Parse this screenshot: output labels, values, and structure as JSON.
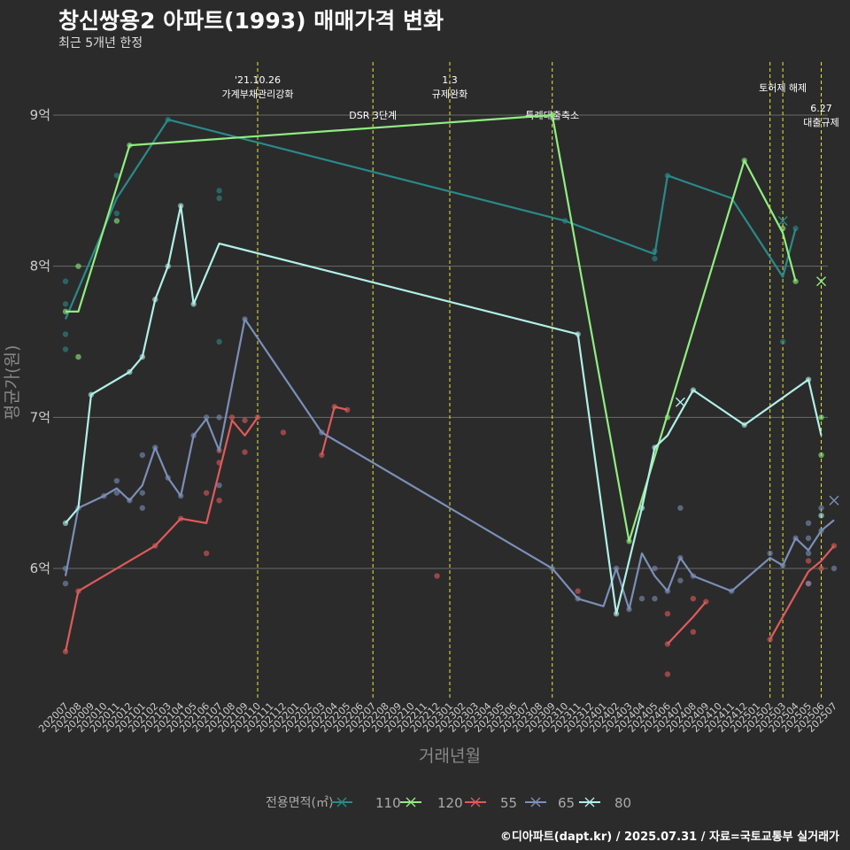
{
  "header": {
    "title": "창신쌍용2 아파트(1993) 매매가격 변화",
    "subtitle": "최근 5개년 한정",
    "caption": "©디아파트(dapt.kr) / 2025.07.31 / 자료=국토교통부 실거래가"
  },
  "chart_data": {
    "type": "line",
    "title": "창신쌍용2 아파트(1993) 매매가격 변화",
    "subtitle": "최근 5개년 한정",
    "xlabel": "거래년월",
    "ylabel": "평균가(원)",
    "ylim": [
      5.1,
      9.4
    ],
    "y_ticks": [
      {
        "value": 6,
        "label": "6억"
      },
      {
        "value": 7,
        "label": "7억"
      },
      {
        "value": 8,
        "label": "8억"
      },
      {
        "value": 9,
        "label": "9억"
      }
    ],
    "x_categories": [
      "202007",
      "202008",
      "202009",
      "202010",
      "202011",
      "202012",
      "202101",
      "202102",
      "202103",
      "202104",
      "202105",
      "202106",
      "202107",
      "202108",
      "202109",
      "202110",
      "202111",
      "202112",
      "202201",
      "202202",
      "202203",
      "202204",
      "202205",
      "202206",
      "202207",
      "202208",
      "202209",
      "202210",
      "202211",
      "202212",
      "202301",
      "202302",
      "202303",
      "202304",
      "202305",
      "202306",
      "202307",
      "202308",
      "202309",
      "202310",
      "202311",
      "202312",
      "202401",
      "202402",
      "202403",
      "202404",
      "202405",
      "202406",
      "202407",
      "202408",
      "202409",
      "202410",
      "202411",
      "202412",
      "202501",
      "202502",
      "202503",
      "202504",
      "202505",
      "202506",
      "202507"
    ],
    "grid": true,
    "legend": {
      "title": "전용면적(㎡)",
      "position": "bottom"
    },
    "annotations": [
      {
        "x": "202110",
        "lines": [
          "'21.10.26",
          "가계부채관리강화"
        ]
      },
      {
        "x": "202207",
        "lines": [
          "DSR 3단계"
        ]
      },
      {
        "x": "202301",
        "lines": [
          "1.3",
          "규제완화"
        ]
      },
      {
        "x": "202309",
        "lines": [
          "특례대출축소"
        ]
      },
      {
        "x": "202502",
        "lines": []
      },
      {
        "x": "202503",
        "lines": [
          "토허제 해제"
        ]
      },
      {
        "x": "202506",
        "lines": [
          "6.27",
          "대출규제"
        ]
      }
    ],
    "series": [
      {
        "name": "110",
        "color": "#2a8a8a",
        "line": [
          [
            "202007",
            7.65
          ],
          [
            "202011",
            8.45
          ],
          [
            "202103",
            8.97
          ],
          [
            "202310",
            8.3
          ],
          [
            "202405",
            8.08
          ],
          [
            "202406",
            8.6
          ],
          [
            "202411",
            8.45
          ],
          [
            "202503",
            7.93
          ],
          [
            "202504",
            8.25
          ]
        ],
        "points": [
          [
            "202007",
            7.9
          ],
          [
            "202007",
            7.75
          ],
          [
            "202007",
            7.55
          ],
          [
            "202007",
            7.45
          ],
          [
            "202011",
            8.6
          ],
          [
            "202011",
            8.35
          ],
          [
            "202103",
            8.97
          ],
          [
            "202107",
            8.5
          ],
          [
            "202107",
            8.45
          ],
          [
            "202107",
            7.5
          ],
          [
            "202310",
            8.3
          ],
          [
            "202405",
            8.1
          ],
          [
            "202405",
            8.05
          ],
          [
            "202406",
            8.6
          ],
          [
            "202503",
            7.5
          ],
          [
            "202504",
            8.25
          ]
        ],
        "crosses": [
          [
            "202503",
            8.3
          ]
        ]
      },
      {
        "name": "120",
        "color": "#90ee80",
        "line": [
          [
            "202007",
            7.7
          ],
          [
            "202008",
            7.7
          ],
          [
            "202012",
            8.8
          ],
          [
            "202309",
            9.0
          ],
          [
            "202403",
            6.18
          ],
          [
            "202412",
            8.7
          ],
          [
            "202503",
            8.22
          ],
          [
            "202504",
            7.9
          ]
        ],
        "points": [
          [
            "202007",
            7.7
          ],
          [
            "202008",
            8.0
          ],
          [
            "202008",
            7.4
          ],
          [
            "202011",
            8.3
          ],
          [
            "202012",
            8.8
          ],
          [
            "202309",
            9.0
          ],
          [
            "202403",
            6.18
          ],
          [
            "202406",
            7.0
          ],
          [
            "202412",
            8.7
          ],
          [
            "202503",
            8.25
          ],
          [
            "202504",
            7.9
          ],
          [
            "202506",
            7.0
          ],
          [
            "202506",
            6.75
          ]
        ],
        "crosses": [
          [
            "202506",
            7.9
          ]
        ]
      },
      {
        "name": "55",
        "color": "#e05a5a",
        "line": [
          [
            "202007",
            5.45
          ],
          [
            "202008",
            5.85
          ],
          [
            "202102",
            6.15
          ],
          [
            "202104",
            6.33
          ],
          [
            "202106",
            6.3
          ],
          [
            "202108",
            6.98
          ],
          [
            "202109",
            6.88
          ],
          [
            "202110",
            7.0
          ]
        ],
        "segments": [
          [
            [
              "202203",
              6.75
            ],
            [
              "202204",
              7.07
            ],
            [
              "202205",
              7.05
            ]
          ],
          [
            [
              "202406",
              5.5
            ],
            [
              "202408",
              5.68
            ],
            [
              "202409",
              5.78
            ]
          ],
          [
            [
              "202502",
              5.53
            ],
            [
              "202505",
              5.98
            ],
            [
              "202506",
              6.05
            ],
            [
              "202507",
              6.15
            ]
          ]
        ],
        "points": [
          [
            "202007",
            5.45
          ],
          [
            "202008",
            5.85
          ],
          [
            "202102",
            6.15
          ],
          [
            "202104",
            6.33
          ],
          [
            "202106",
            6.5
          ],
          [
            "202106",
            6.1
          ],
          [
            "202107",
            6.78
          ],
          [
            "202107",
            6.7
          ],
          [
            "202107",
            6.45
          ],
          [
            "202108",
            7.0
          ],
          [
            "202109",
            6.98
          ],
          [
            "202109",
            6.77
          ],
          [
            "202110",
            7.0
          ],
          [
            "202112",
            6.9
          ],
          [
            "202203",
            6.75
          ],
          [
            "202204",
            7.07
          ],
          [
            "202205",
            7.05
          ],
          [
            "202212",
            5.95
          ],
          [
            "202311",
            5.85
          ],
          [
            "202406",
            5.7
          ],
          [
            "202406",
            5.5
          ],
          [
            "202406",
            5.3
          ],
          [
            "202408",
            5.8
          ],
          [
            "202408",
            5.58
          ],
          [
            "202409",
            5.78
          ],
          [
            "202502",
            5.53
          ],
          [
            "202505",
            6.05
          ],
          [
            "202505",
            5.9
          ],
          [
            "202506",
            6.0
          ],
          [
            "202507",
            6.15
          ]
        ]
      },
      {
        "name": "65",
        "color": "#7b8fb8",
        "line": [
          [
            "202007",
            5.95
          ],
          [
            "202008",
            6.4
          ],
          [
            "202010",
            6.48
          ],
          [
            "202011",
            6.53
          ],
          [
            "202012",
            6.45
          ],
          [
            "202101",
            6.55
          ],
          [
            "202102",
            6.8
          ],
          [
            "202103",
            6.6
          ],
          [
            "202104",
            6.48
          ],
          [
            "202105",
            6.88
          ],
          [
            "202106",
            6.99
          ],
          [
            "202107",
            6.78
          ],
          [
            "202109",
            7.65
          ],
          [
            "202203",
            6.9
          ],
          [
            "202309",
            6.0
          ],
          [
            "202311",
            5.8
          ],
          [
            "202401",
            5.75
          ],
          [
            "202402",
            6.0
          ],
          [
            "202403",
            5.73
          ],
          [
            "202404",
            6.1
          ],
          [
            "202405",
            5.95
          ],
          [
            "202406",
            5.85
          ],
          [
            "202407",
            6.07
          ],
          [
            "202408",
            5.95
          ],
          [
            "202411",
            5.85
          ],
          [
            "202502",
            6.07
          ],
          [
            "202503",
            6.02
          ],
          [
            "202504",
            6.2
          ],
          [
            "202505",
            6.12
          ],
          [
            "202506",
            6.25
          ],
          [
            "202507",
            6.32
          ]
        ],
        "points": [
          [
            "202007",
            5.9
          ],
          [
            "202007",
            6.0
          ],
          [
            "202008",
            6.4
          ],
          [
            "202010",
            6.48
          ],
          [
            "202011",
            6.58
          ],
          [
            "202011",
            6.5
          ],
          [
            "202012",
            6.45
          ],
          [
            "202101",
            6.75
          ],
          [
            "202101",
            6.5
          ],
          [
            "202101",
            6.4
          ],
          [
            "202102",
            6.8
          ],
          [
            "202103",
            6.6
          ],
          [
            "202104",
            6.48
          ],
          [
            "202105",
            6.88
          ],
          [
            "202106",
            7.0
          ],
          [
            "202107",
            7.0
          ],
          [
            "202107",
            6.55
          ],
          [
            "202109",
            7.65
          ],
          [
            "202203",
            6.9
          ],
          [
            "202309",
            6.0
          ],
          [
            "202311",
            5.8
          ],
          [
            "202402",
            6.0
          ],
          [
            "202403",
            5.73
          ],
          [
            "202404",
            5.8
          ],
          [
            "202405",
            6.0
          ],
          [
            "202405",
            5.8
          ],
          [
            "202406",
            5.85
          ],
          [
            "202407",
            6.4
          ],
          [
            "202407",
            6.07
          ],
          [
            "202407",
            5.92
          ],
          [
            "202408",
            5.95
          ],
          [
            "202411",
            5.85
          ],
          [
            "202502",
            6.1
          ],
          [
            "202503",
            6.02
          ],
          [
            "202504",
            6.2
          ],
          [
            "202505",
            6.3
          ],
          [
            "202505",
            6.2
          ],
          [
            "202505",
            6.1
          ],
          [
            "202505",
            5.9
          ],
          [
            "202506",
            6.25
          ],
          [
            "202506",
            6.4
          ],
          [
            "202507",
            6.0
          ]
        ],
        "crosses": [
          [
            "202507",
            6.45
          ]
        ]
      },
      {
        "name": "80",
        "color": "#b0f0e8",
        "line": [
          [
            "202007",
            6.3
          ],
          [
            "202008",
            6.4
          ],
          [
            "202009",
            7.15
          ],
          [
            "202012",
            7.3
          ],
          [
            "202101",
            7.4
          ],
          [
            "202102",
            7.78
          ],
          [
            "202103",
            8.0
          ],
          [
            "202104",
            8.4
          ],
          [
            "202105",
            7.75
          ],
          [
            "202107",
            8.15
          ],
          [
            "202311",
            7.55
          ],
          [
            "202402",
            5.7
          ],
          [
            "202404",
            6.4
          ],
          [
            "202405",
            6.8
          ],
          [
            "202406",
            6.88
          ],
          [
            "202408",
            7.18
          ],
          [
            "202412",
            6.95
          ],
          [
            "202505",
            7.25
          ],
          [
            "202506",
            6.88
          ]
        ],
        "points": [
          [
            "202007",
            6.3
          ],
          [
            "202009",
            7.15
          ],
          [
            "202012",
            7.3
          ],
          [
            "202101",
            7.4
          ],
          [
            "202102",
            7.78
          ],
          [
            "202103",
            8.0
          ],
          [
            "202104",
            8.4
          ],
          [
            "202105",
            7.75
          ],
          [
            "202311",
            7.55
          ],
          [
            "202402",
            5.7
          ],
          [
            "202404",
            6.4
          ],
          [
            "202405",
            6.8
          ],
          [
            "202408",
            7.18
          ],
          [
            "202412",
            6.95
          ],
          [
            "202505",
            7.25
          ],
          [
            "202506",
            6.35
          ]
        ],
        "crosses": [
          [
            "202407",
            7.1
          ]
        ]
      }
    ]
  }
}
